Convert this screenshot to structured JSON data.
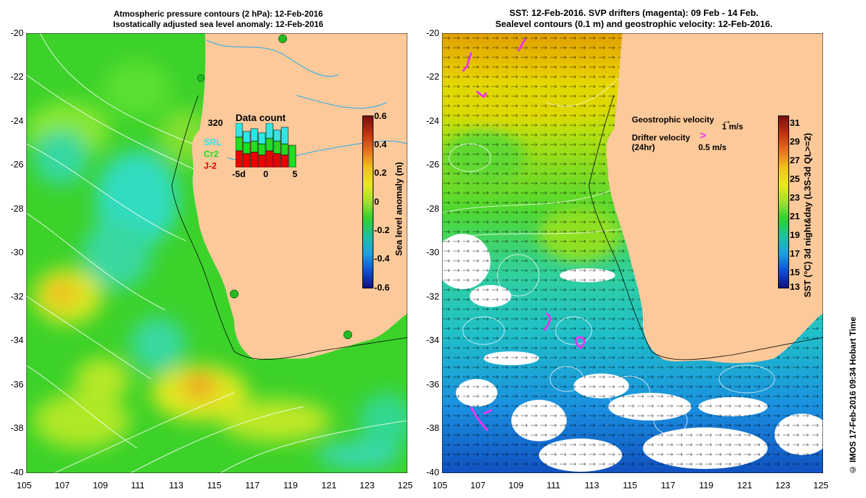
{
  "left_panel": {
    "title_line1": "Atmospheric pressure contours (2 hPa): 12-Feb-2016",
    "title_line2": "Isostatically adjusted sea level anomaly: 12-Feb-2016",
    "colorbar": {
      "label": "Sea level anomaly (m)",
      "ticks": [
        "0.6",
        "0.4",
        "0.2",
        "0",
        "-0.2",
        "-0.4",
        "-0.6"
      ]
    },
    "inset": {
      "title": "Data count",
      "max_count": "320",
      "legend": [
        {
          "name": "SRL",
          "color": "#33e6e6"
        },
        {
          "name": "Cr2",
          "color": "#22dd22"
        },
        {
          "name": "J-2",
          "color": "#ee0000"
        }
      ],
      "x_ticks": [
        "-5d",
        "0",
        "5"
      ]
    }
  },
  "right_panel": {
    "title_line1": "SST: 12-Feb-2016. SVP drifters (magenta): 09 Feb - 14 Feb.",
    "title_line2": "Sealevel contours (0.1 m) and geostrophic velocity: 12-Feb-2016.",
    "legend": {
      "geo_label": "Geostrophic velocity",
      "geo_scale": "1 m/s",
      "drifter_label": "Drifter velocity",
      "drifter_sub": "(24hr)",
      "drifter_scale": "0.5 m/s"
    },
    "colorbar": {
      "label": "SST (°C) 3d night&day (L3S-3d QL>=2)",
      "ticks": [
        "31",
        "29",
        "27",
        "25",
        "23",
        "21",
        "19",
        "17",
        "15",
        "13"
      ]
    }
  },
  "axes": {
    "x_ticks": [
      "105",
      "107",
      "109",
      "111",
      "113",
      "115",
      "117",
      "119",
      "121",
      "123",
      "125"
    ],
    "y_ticks": [
      "-20",
      "-22",
      "-24",
      "-26",
      "-28",
      "-30",
      "-32",
      "-34",
      "-36",
      "-38",
      "-40"
    ]
  },
  "credit": "© IMOS 17-Feb-2016 09:34 Hobart Time",
  "colors": {
    "land": "#fcc99b",
    "sea_green": "#3ccf2a",
    "sst_yellow": "#e8e000",
    "sst_blue": "#1aa0e0"
  }
}
